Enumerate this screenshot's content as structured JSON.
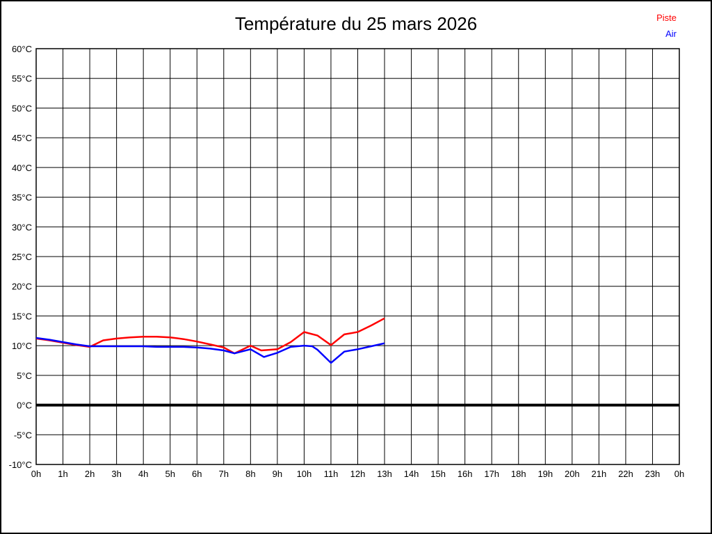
{
  "page": {
    "background": "#ffffff",
    "border_color": "#000000"
  },
  "chart_data": {
    "type": "line",
    "title": "Température du 25 mars 2026",
    "xlabel": "",
    "ylabel": "",
    "xlim": [
      0,
      24
    ],
    "ylim": [
      -10,
      60
    ],
    "grid": true,
    "grid_color": "#000000",
    "legend_position": "top-right",
    "y_ticks": [
      60,
      55,
      50,
      45,
      40,
      35,
      30,
      25,
      20,
      15,
      10,
      5,
      0,
      -5,
      -10
    ],
    "y_tick_labels": [
      "60°C",
      "55°C",
      "50°C",
      "45°C",
      "40°C",
      "35°C",
      "30°C",
      "25°C",
      "20°C",
      "15°C",
      "10°C",
      "5°C",
      "0°C",
      "-5°C",
      "-10°C"
    ],
    "x_ticks": [
      0,
      1,
      2,
      3,
      4,
      5,
      6,
      7,
      8,
      9,
      10,
      11,
      12,
      13,
      14,
      15,
      16,
      17,
      18,
      19,
      20,
      21,
      22,
      23,
      24
    ],
    "x_tick_labels": [
      "0h",
      "1h",
      "2h",
      "3h",
      "4h",
      "5h",
      "6h",
      "7h",
      "8h",
      "9h",
      "10h",
      "11h",
      "12h",
      "13h",
      "14h",
      "15h",
      "16h",
      "17h",
      "18h",
      "19h",
      "20h",
      "21h",
      "22h",
      "23h",
      "0h"
    ],
    "zero_line": {
      "value": 0,
      "color": "#000000",
      "width": 4
    },
    "series": [
      {
        "name": "Piste",
        "color": "#ff0000",
        "points": [
          [
            0,
            11.2
          ],
          [
            0.5,
            10.9
          ],
          [
            1,
            10.5
          ],
          [
            1.5,
            10.1
          ],
          [
            2,
            9.8
          ],
          [
            2.5,
            10.9
          ],
          [
            3,
            11.2
          ],
          [
            3.5,
            11.4
          ],
          [
            4,
            11.5
          ],
          [
            4.5,
            11.5
          ],
          [
            5,
            11.4
          ],
          [
            5.5,
            11.1
          ],
          [
            6,
            10.7
          ],
          [
            6.5,
            10.2
          ],
          [
            7,
            9.7
          ],
          [
            7.4,
            8.7
          ],
          [
            8,
            10.0
          ],
          [
            8.4,
            9.2
          ],
          [
            9,
            9.4
          ],
          [
            9.5,
            10.6
          ],
          [
            10,
            12.3
          ],
          [
            10.5,
            11.7
          ],
          [
            11,
            10.1
          ],
          [
            11.5,
            11.9
          ],
          [
            12,
            12.3
          ],
          [
            12.5,
            13.4
          ],
          [
            13,
            14.6
          ]
        ]
      },
      {
        "name": "Air",
        "color": "#0000ff",
        "points": [
          [
            0,
            11.3
          ],
          [
            0.5,
            11.0
          ],
          [
            1,
            10.6
          ],
          [
            1.5,
            10.2
          ],
          [
            2,
            9.9
          ],
          [
            2.5,
            9.9
          ],
          [
            3,
            9.9
          ],
          [
            3.5,
            9.9
          ],
          [
            4,
            9.9
          ],
          [
            4.5,
            9.8
          ],
          [
            5,
            9.8
          ],
          [
            5.5,
            9.8
          ],
          [
            6,
            9.7
          ],
          [
            6.5,
            9.5
          ],
          [
            7,
            9.2
          ],
          [
            7.4,
            8.7
          ],
          [
            8,
            9.4
          ],
          [
            8.5,
            8.1
          ],
          [
            9,
            8.8
          ],
          [
            9.5,
            9.8
          ],
          [
            10,
            10.0
          ],
          [
            10.3,
            9.9
          ],
          [
            10.5,
            9.3
          ],
          [
            11,
            7.1
          ],
          [
            11.5,
            9.0
          ],
          [
            12,
            9.4
          ],
          [
            12.5,
            9.9
          ],
          [
            13,
            10.4
          ]
        ]
      }
    ]
  }
}
